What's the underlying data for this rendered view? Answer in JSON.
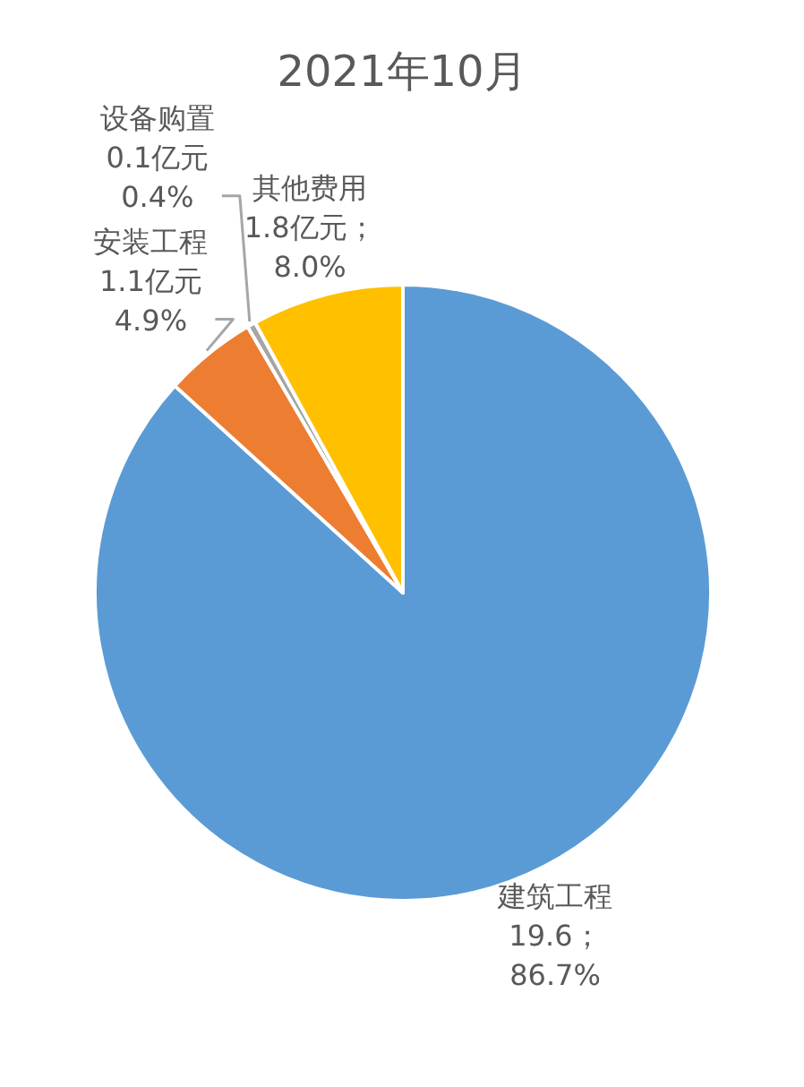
{
  "chart_data": {
    "type": "pie",
    "title": "2021年10月",
    "categories": [
      "建筑工程",
      "安装工程",
      "设备购置",
      "其他费用"
    ],
    "values": [
      19.6,
      1.1,
      0.1,
      1.8
    ],
    "value_labels": [
      "19.6；\n86.7%",
      "1.1亿元\n4.9%",
      "0.1亿元\n0.4%",
      "1.8亿元；\n8.0%"
    ],
    "colors": [
      "#5b9bd5",
      "#ed7d31",
      "#a5a5a5",
      "#ffc000"
    ]
  }
}
